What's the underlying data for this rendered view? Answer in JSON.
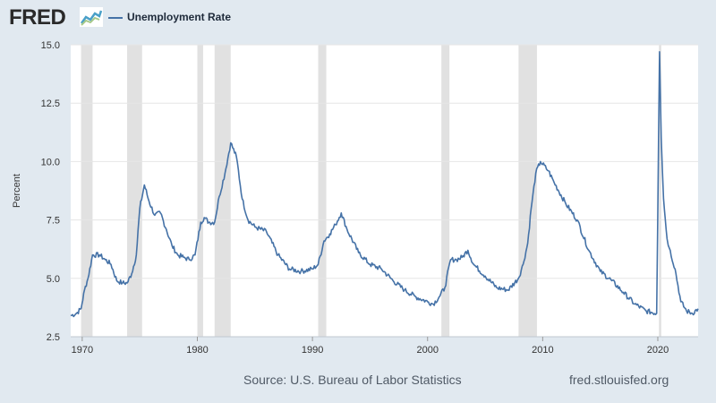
{
  "header": {
    "logo_text": "FRED",
    "series_label": "Unemployment Rate",
    "series_color": "#4572a7"
  },
  "footer": {
    "source": "Source: U.S. Bureau of Labor Statistics",
    "url": "fred.stlouisfed.org"
  },
  "colors": {
    "line": "#4572a7",
    "recession": "#e1e1e1",
    "grid": "#e6e6e6",
    "background": "#e1e9f0",
    "plot": "#ffffff"
  },
  "chart_data": {
    "type": "line",
    "title": "",
    "xlabel": "",
    "ylabel": "Percent",
    "xlim": [
      1969.0,
      2023.5
    ],
    "ylim": [
      2.5,
      15.0
    ],
    "yticks": [
      2.5,
      5.0,
      7.5,
      10.0,
      12.5,
      15.0
    ],
    "ytick_labels": [
      "2.5",
      "5.0",
      "7.5",
      "10.0",
      "12.5",
      "15.0"
    ],
    "xticks": [
      1970,
      1980,
      1990,
      2000,
      2010,
      2020
    ],
    "xtick_labels": [
      "1970",
      "1980",
      "1990",
      "2000",
      "2010",
      "2020"
    ],
    "grid": true,
    "legend": "top-left",
    "recessions": [
      [
        1969.9,
        1970.9
      ],
      [
        1973.9,
        1975.2
      ],
      [
        1980.0,
        1980.5
      ],
      [
        1981.5,
        1982.9
      ],
      [
        1990.5,
        1991.2
      ],
      [
        2001.2,
        2001.9
      ],
      [
        2007.9,
        2009.5
      ],
      [
        2020.1,
        2020.3
      ]
    ],
    "series": [
      {
        "name": "Unemployment Rate",
        "x": [
          1969.0,
          1969.5,
          1969.9,
          1970.2,
          1970.5,
          1970.9,
          1971.5,
          1972.0,
          1972.5,
          1973.0,
          1973.5,
          1973.9,
          1974.3,
          1974.7,
          1975.0,
          1975.4,
          1975.8,
          1976.3,
          1976.8,
          1977.3,
          1977.8,
          1978.3,
          1978.8,
          1979.3,
          1979.8,
          1980.3,
          1980.6,
          1981.0,
          1981.5,
          1981.9,
          1982.4,
          1982.9,
          1983.4,
          1983.9,
          1984.4,
          1985.0,
          1986.0,
          1987.0,
          1988.0,
          1989.0,
          1990.0,
          1990.5,
          1991.0,
          1991.5,
          1992.0,
          1992.5,
          1993.0,
          1994.0,
          1995.0,
          1996.0,
          1997.0,
          1998.0,
          1999.0,
          2000.0,
          2000.5,
          2001.0,
          2001.5,
          2002.0,
          2002.5,
          2003.0,
          2003.5,
          2004.0,
          2005.0,
          2006.0,
          2007.0,
          2007.9,
          2008.3,
          2008.7,
          2009.0,
          2009.4,
          2009.8,
          2010.5,
          2011.0,
          2012.0,
          2013.0,
          2014.0,
          2015.0,
          2016.0,
          2017.0,
          2018.0,
          2019.0,
          2019.9,
          2020.15,
          2020.3,
          2020.5,
          2020.8,
          2021.0,
          2021.5,
          2022.0,
          2022.5,
          2023.0,
          2023.5
        ],
        "values": [
          3.4,
          3.5,
          3.7,
          4.5,
          5.0,
          6.0,
          6.0,
          5.8,
          5.6,
          4.9,
          4.8,
          4.8,
          5.2,
          6.0,
          8.0,
          9.0,
          8.3,
          7.7,
          7.8,
          7.1,
          6.4,
          6.0,
          5.9,
          5.8,
          6.0,
          7.4,
          7.6,
          7.4,
          7.4,
          8.5,
          9.5,
          10.8,
          10.2,
          8.4,
          7.5,
          7.2,
          7.0,
          6.0,
          5.4,
          5.3,
          5.4,
          5.6,
          6.6,
          6.9,
          7.3,
          7.8,
          7.1,
          6.1,
          5.6,
          5.4,
          4.9,
          4.5,
          4.2,
          4.0,
          3.9,
          4.2,
          4.6,
          5.8,
          5.8,
          5.9,
          6.2,
          5.6,
          5.1,
          4.6,
          4.5,
          5.0,
          5.6,
          6.5,
          8.0,
          9.5,
          10.0,
          9.6,
          9.1,
          8.2,
          7.5,
          6.2,
          5.3,
          4.9,
          4.4,
          3.9,
          3.6,
          3.5,
          14.7,
          11.0,
          8.4,
          6.7,
          6.3,
          5.4,
          4.0,
          3.6,
          3.5,
          3.7
        ]
      }
    ]
  }
}
